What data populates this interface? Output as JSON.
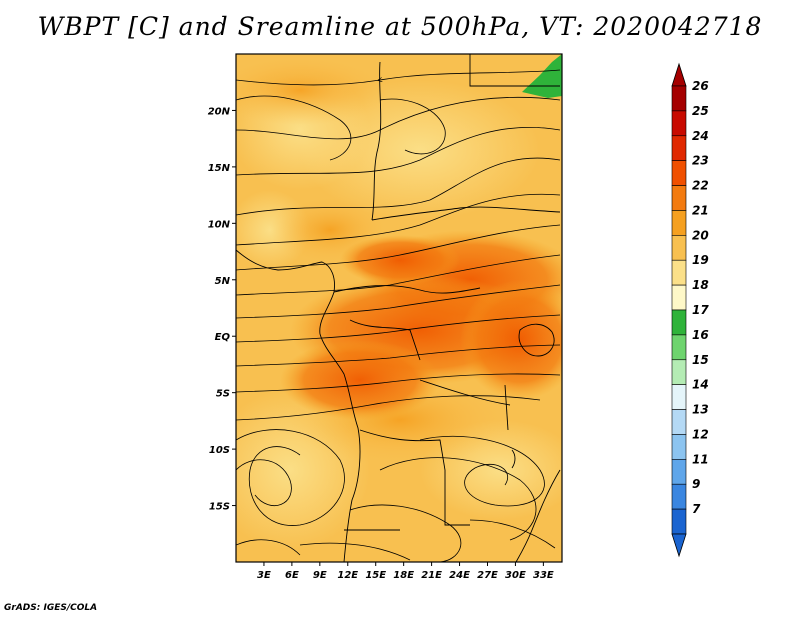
{
  "title": "WBPT [C] and Sreamline at 500hPa, VT: 2020042718",
  "credit": "GrADS: IGES/COLA",
  "chart_data": {
    "type": "heatmap",
    "variable": "WBPT [C]",
    "overlay": "streamlines",
    "level": "500hPa",
    "valid_time": "2020042718",
    "lon_range": [
      0,
      35
    ],
    "lat_range": [
      -20,
      25
    ],
    "x_ticks": [
      "3E",
      "6E",
      "9E",
      "12E",
      "15E",
      "18E",
      "21E",
      "24E",
      "27E",
      "30E",
      "33E"
    ],
    "x_tick_values": [
      3,
      6,
      9,
      12,
      15,
      18,
      21,
      24,
      27,
      30,
      33
    ],
    "y_ticks": [
      "20N",
      "15N",
      "10N",
      "5N",
      "EQ",
      "5S",
      "10S",
      "15S"
    ],
    "y_tick_values": [
      20,
      15,
      10,
      5,
      0,
      -5,
      -10,
      -15
    ],
    "colorbar": {
      "labels": [
        "26",
        "25",
        "24",
        "23",
        "22",
        "21",
        "20",
        "19",
        "18",
        "17",
        "16",
        "15",
        "14",
        "13",
        "12",
        "11",
        "9",
        "7"
      ],
      "colors": [
        "#a50000",
        "#c80a00",
        "#e02800",
        "#f05000",
        "#f37b10",
        "#f5a020",
        "#f8c050",
        "#fbe089",
        "#fef8c8",
        "#2fb33a",
        "#6ed46e",
        "#b4ecb4",
        "#e5f5fa",
        "#b4d9f5",
        "#8cc4f0",
        "#5fa6ea",
        "#3a86e0",
        "#1a64d0"
      ],
      "top_color": "#a50000",
      "bottom_color": "#1a64d0"
    }
  }
}
